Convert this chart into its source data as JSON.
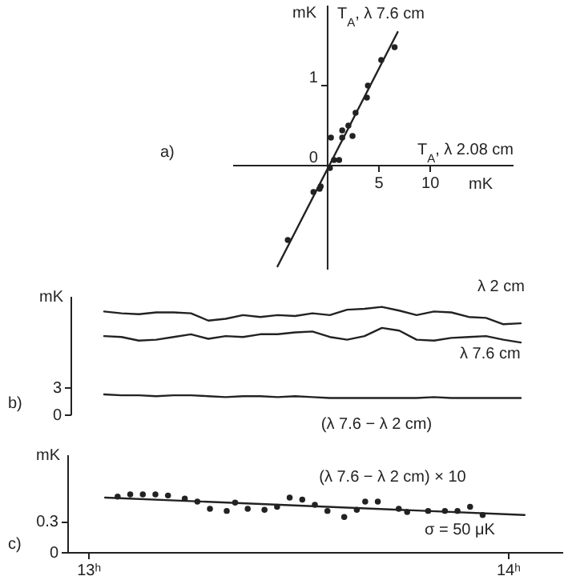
{
  "chart_data": [
    {
      "type": "scatter",
      "title": "a)",
      "xlabel": "T$_{A}$, λ 2.08 cm",
      "ylabel": "T$_{A}$, λ 7.6 cm",
      "annotations": [
        "mK",
        "mK"
      ],
      "xlim": [
        -9.2,
        18.1
      ],
      "ylim": [
        -1.3,
        2.0
      ],
      "xticks": [
        5,
        10
      ],
      "yticks": [
        0,
        1
      ],
      "series": [
        {
          "marker": "circle",
          "color": "#222222",
          "x": [
            6.6,
            5.3,
            4.0,
            3.9,
            2.8,
            2.1,
            1.5,
            1.5,
            2.5,
            0.4,
            0.7,
            1.2,
            0.3,
            -0.6,
            -0.7,
            -1.3,
            -3.8
          ],
          "values": [
            1.47,
            1.31,
            0.99,
            0.84,
            0.65,
            0.49,
            0.43,
            0.34,
            0.36,
            0.34,
            0.06,
            0.06,
            -0.04,
            -0.27,
            -0.3,
            -0.34,
            -0.94
          ]
        },
        {
          "type": "line",
          "color": "#222222",
          "x": [
            -4.8,
            6.9
          ],
          "values": [
            -1.27,
            1.66
          ]
        }
      ]
    },
    {
      "type": "line",
      "title": "b)",
      "ylabel": "mK",
      "categories": [
        null,
        null,
        null,
        null,
        null,
        null,
        null,
        null,
        null,
        null,
        null,
        null,
        null,
        null,
        null,
        null,
        null,
        null,
        null,
        null,
        null,
        null,
        null,
        null,
        null
      ],
      "ylim": [
        0,
        13
      ],
      "yticks": [
        0,
        3
      ],
      "series": [
        {
          "name": "λ 2 cm",
          "color": "#222222",
          "values": [
            11.3,
            11.1,
            11.0,
            11.2,
            11.2,
            11.1,
            10.3,
            10.5,
            10.9,
            10.7,
            10.9,
            10.8,
            11.1,
            10.9,
            11.5,
            11.6,
            11.8,
            11.4,
            10.9,
            11.3,
            11.2,
            10.7,
            10.6,
            9.9,
            10.0
          ]
        },
        {
          "name": "λ 7.6 cm",
          "color": "#222222",
          "values": [
            8.6,
            8.5,
            8.1,
            8.2,
            8.5,
            8.8,
            8.3,
            8.6,
            8.5,
            8.8,
            8.8,
            9.0,
            9.1,
            8.5,
            8.2,
            8.6,
            9.5,
            9.2,
            8.2,
            8.1,
            8.4,
            8.5,
            8.6,
            8.2,
            7.9
          ]
        },
        {
          "name": "(λ 7.6 − λ 2 cm)",
          "color": "#222222",
          "values": [
            2.2,
            2.1,
            2.1,
            2.0,
            2.1,
            2.1,
            2.0,
            1.9,
            2.0,
            2.0,
            1.9,
            2.0,
            1.9,
            1.8,
            1.8,
            1.8,
            1.8,
            1.8,
            1.8,
            1.9,
            1.8,
            1.8,
            1.8,
            1.8,
            1.8
          ]
        }
      ]
    },
    {
      "type": "scatter",
      "title": "c)",
      "ylabel": "mK",
      "annotations": [
        "(λ 7.6 − λ 2 cm) × 10",
        "σ = 50 μK"
      ],
      "xlim": [
        12.95,
        14.13
      ],
      "ylim": [
        0,
        0.95
      ],
      "xticks": [
        {
          "value": 13,
          "label": "13ʰ"
        },
        {
          "value": 14,
          "label": "14ʰ"
        }
      ],
      "yticks": [
        0,
        0.3
      ],
      "series": [
        {
          "marker": "circle",
          "color": "#222222",
          "x": [
            13.07,
            13.1,
            13.13,
            13.16,
            13.19,
            13.23,
            13.26,
            13.29,
            13.33,
            13.35,
            13.38,
            13.42,
            13.45,
            13.48,
            13.51,
            13.54,
            13.57,
            13.61,
            13.64,
            13.66,
            13.69,
            13.74,
            13.76,
            13.81,
            13.85,
            13.88,
            13.91,
            13.94
          ],
          "values": [
            0.54,
            0.56,
            0.56,
            0.56,
            0.55,
            0.52,
            0.49,
            0.42,
            0.4,
            0.48,
            0.42,
            0.41,
            0.44,
            0.53,
            0.51,
            0.46,
            0.4,
            0.34,
            0.41,
            0.49,
            0.49,
            0.42,
            0.39,
            0.4,
            0.4,
            0.4,
            0.44,
            0.36
          ]
        },
        {
          "type": "line",
          "color": "#222222",
          "x": [
            13.04,
            14.04
          ],
          "values": [
            0.53,
            0.36
          ]
        }
      ]
    }
  ]
}
